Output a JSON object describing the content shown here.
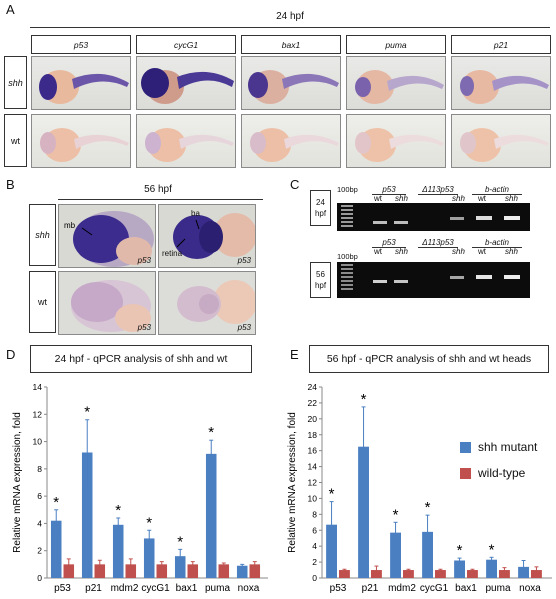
{
  "panelA": {
    "letter": "A",
    "timepoint": "24 hpf",
    "genes": [
      "p53",
      "cycG1",
      "bax1",
      "puma",
      "p21"
    ],
    "rows": [
      "shh",
      "wt"
    ]
  },
  "panelB": {
    "letter": "B",
    "timepoint": "56 hpf",
    "rows": [
      "shh",
      "wt"
    ],
    "corner_label": "p53",
    "annotations": {
      "mb": "mb",
      "ba": "ba",
      "retina": "retina"
    }
  },
  "panelC": {
    "letter": "C",
    "ladder": "100bp",
    "groups": [
      "p53",
      "Δ113p53",
      "b-actin"
    ],
    "lanes": [
      "wt",
      "shh"
    ],
    "rows": [
      {
        "line1": "24",
        "line2": "hpf"
      },
      {
        "line1": "56",
        "line2": "hpf"
      }
    ]
  },
  "legend": {
    "items": [
      {
        "label": "shh mutant",
        "color": "#4a7fc1"
      },
      {
        "label": "wild-type",
        "color": "#c0504d"
      }
    ]
  },
  "chart_data": [
    {
      "panel": "D",
      "type": "bar",
      "title": "24 hpf - qPCR analysis of shh and wt",
      "ylabel": "Relative mRNA expression, fold",
      "ylim": [
        0,
        14
      ],
      "yticks": [
        0,
        2,
        4,
        6,
        8,
        10,
        12,
        14
      ],
      "categories": [
        "p53",
        "p21",
        "mdm2",
        "cycG1",
        "bax1",
        "puma",
        "noxa"
      ],
      "series": [
        {
          "name": "shh mutant",
          "color": "#4a7fc1",
          "values": [
            4.2,
            9.2,
            3.9,
            2.9,
            1.6,
            9.1,
            0.9
          ],
          "errors": [
            0.8,
            2.4,
            0.5,
            0.6,
            0.5,
            1.0,
            0.1
          ]
        },
        {
          "name": "wild-type",
          "color": "#c0504d",
          "values": [
            1.0,
            1.0,
            1.0,
            1.0,
            1.0,
            1.0,
            1.0
          ],
          "errors": [
            0.4,
            0.3,
            0.4,
            0.2,
            0.2,
            0.1,
            0.2
          ]
        }
      ],
      "significant": [
        true,
        true,
        true,
        true,
        true,
        true,
        false
      ],
      "star": "*"
    },
    {
      "panel": "E",
      "type": "bar",
      "title": "56 hpf - qPCR analysis of shh and wt heads",
      "ylabel": "Relative mRNA expression, fold",
      "ylim": [
        0,
        24
      ],
      "yticks": [
        0,
        2,
        4,
        6,
        8,
        10,
        12,
        14,
        16,
        18,
        20,
        22,
        24
      ],
      "categories": [
        "p53",
        "p21",
        "mdm2",
        "cycG1",
        "bax1",
        "puma",
        "noxa"
      ],
      "series": [
        {
          "name": "shh mutant",
          "color": "#4a7fc1",
          "values": [
            6.7,
            16.5,
            5.7,
            5.8,
            2.2,
            2.3,
            1.4
          ],
          "errors": [
            2.9,
            5.0,
            1.3,
            2.1,
            0.3,
            0.3,
            0.8
          ]
        },
        {
          "name": "wild-type",
          "color": "#c0504d",
          "values": [
            1.0,
            1.0,
            1.0,
            1.0,
            1.0,
            1.0,
            1.0
          ],
          "errors": [
            0.1,
            0.5,
            0.1,
            0.1,
            0.1,
            0.3,
            0.4
          ]
        }
      ],
      "significant": [
        true,
        true,
        true,
        true,
        true,
        true,
        false
      ],
      "star": "*"
    }
  ]
}
